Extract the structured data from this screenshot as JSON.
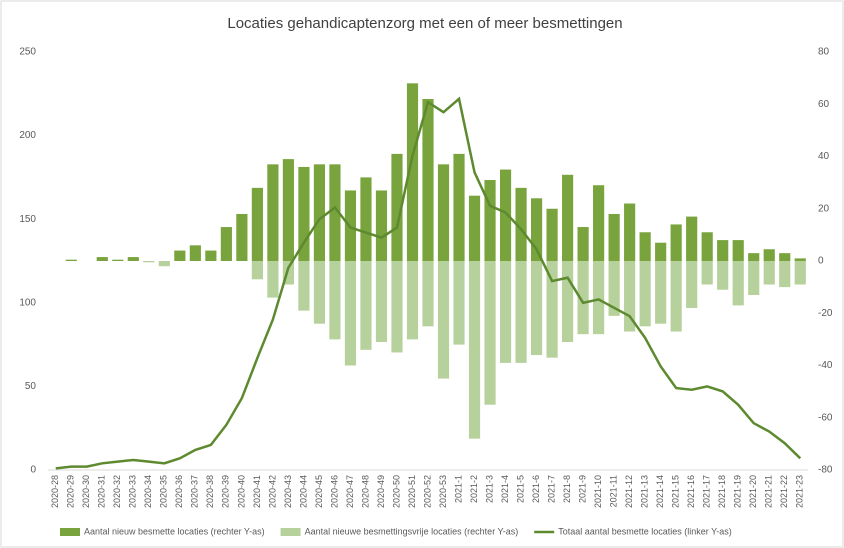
{
  "chart_data": {
    "type": "bar",
    "title": "Locaties gehandicaptenzorg met een of meer besmettingen",
    "categories": [
      "2020-28",
      "2020-29",
      "2020-30",
      "2020-31",
      "2020-32",
      "2020-33",
      "2020-34",
      "2020-35",
      "2020-36",
      "2020-37",
      "2020-38",
      "2020-39",
      "2020-40",
      "2020-41",
      "2020-42",
      "2020-43",
      "2020-44",
      "2020-45",
      "2020-46",
      "2020-47",
      "2020-48",
      "2020-49",
      "2020-50",
      "2020-51",
      "2020-52",
      "2020-53",
      "2021-1",
      "2021-2",
      "2021-3",
      "2021-4",
      "2021-5",
      "2021-6",
      "2021-7",
      "2021-8",
      "2021-9",
      "2021-10",
      "2021-11",
      "2021-12",
      "2021-13",
      "2021-14",
      "2021-15",
      "2021-16",
      "2021-17",
      "2021-18",
      "2021-19",
      "2021-20",
      "2021-21",
      "2021-22",
      "2021-23"
    ],
    "series": [
      {
        "name": "Aantal nieuw besmette locaties (rechter Y-as)",
        "type": "bar",
        "axis": "y2",
        "color": "#79a33d",
        "values": [
          0,
          0.5,
          0,
          1.5,
          0.5,
          1.5,
          0,
          0,
          4,
          6,
          4,
          13,
          18,
          28,
          37,
          39,
          36,
          37,
          37,
          27,
          32,
          27,
          41,
          68,
          62,
          37,
          41,
          25,
          31,
          35,
          28,
          24,
          20,
          33,
          13,
          29,
          18,
          22,
          11,
          7,
          14,
          17,
          11,
          8,
          8,
          3,
          4.5,
          3,
          1
        ]
      },
      {
        "name": "Aantal nieuwe besmettingsvrije locaties (rechter Y-as)",
        "type": "bar",
        "axis": "y2",
        "color": "#b6d19b",
        "values": [
          0,
          0,
          0,
          0,
          0,
          0,
          -0.5,
          -2,
          0,
          0,
          0,
          0,
          0,
          -7,
          -14,
          -9,
          -19,
          -24,
          -30,
          -40,
          -34,
          -31,
          -35,
          -30,
          -25,
          -45,
          -32,
          -68,
          -55,
          -39,
          -39,
          -36,
          -37,
          -31,
          -28,
          -28,
          -21,
          -27,
          -25,
          -24,
          -27,
          -18,
          -9,
          -11,
          -17,
          -13,
          -9,
          -10,
          -9
        ]
      },
      {
        "name": "Totaal aantal besmette locaties (linker Y-as)",
        "type": "line",
        "axis": "y",
        "color": "#5e8a2f",
        "values": [
          1,
          2,
          2,
          4,
          5,
          6,
          5,
          4,
          7,
          12,
          15,
          27,
          43,
          67,
          90,
          121,
          136,
          150,
          157,
          145,
          142,
          139,
          145,
          188,
          220,
          214,
          222,
          178,
          158,
          154,
          144,
          132,
          113,
          115,
          100,
          102,
          97,
          92,
          79,
          62,
          49,
          48,
          50,
          47,
          39,
          28,
          23,
          16,
          7
        ]
      }
    ],
    "ylim": [
      0,
      250
    ],
    "yticks": [
      0,
      50,
      100,
      150,
      200,
      250
    ],
    "y2lim": [
      -80,
      80
    ],
    "y2ticks": [
      -80,
      -60,
      -40,
      -20,
      0,
      20,
      40,
      60,
      80
    ],
    "legend": "bottom"
  }
}
